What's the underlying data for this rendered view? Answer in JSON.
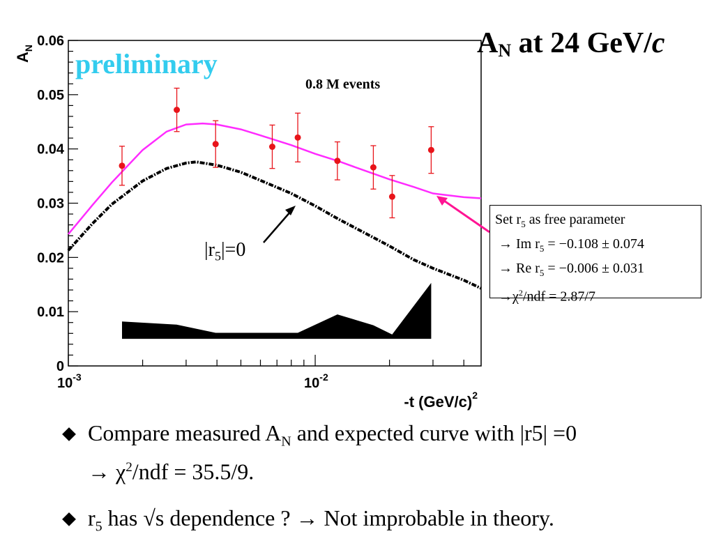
{
  "slide": {
    "title_main": "A",
    "title_sub": "N",
    "title_rest": " at 24 GeV/",
    "title_italic": "c",
    "preliminary": "preliminary",
    "events": "0.8 M events"
  },
  "annotations": {
    "r5_label_pre": "|r",
    "r5_label_sub": "5",
    "r5_label_post": "|=0"
  },
  "fit_box": {
    "line1_pre": "Set r",
    "line1_sub": "5",
    "line1_post": " as free parameter",
    "line2_pre": "→ Im r",
    "line2_sub": "5",
    "line2_post": " = −0.108 ± 0.074",
    "line3_pre": "→ Re r",
    "line3_sub": "5",
    "line3_post": " = −0.006 ± 0.031",
    "line4_pre": "→χ",
    "line4_sup": "2",
    "line4_post": "/ndf = 2.87/7"
  },
  "bullets": {
    "b1_pre": "Compare measured A",
    "b1_sub": "N",
    "b1_post": " and expected curve with |r5| =0",
    "b1_line2_pre": "→ χ",
    "b1_line2_sup": "2",
    "b1_line2_post": "/ndf = 35.5/9.",
    "b2_pre": "r",
    "b2_sub": "5",
    "b2_post": " has √s dependence ? → Not improbable in theory."
  },
  "colors": {
    "points": "#e8141a",
    "fit_curve": "#ff2bff",
    "arrow": "#ff1493",
    "band": "#000000",
    "preliminary": "#33ccee"
  },
  "chart_data": {
    "type": "scatter",
    "ylabel_main": "A",
    "ylabel_sub": "N",
    "xlabel": "-t (GeV/c)",
    "xlabel_sup": "2",
    "xscale": "log",
    "xlim": [
      0.001,
      0.047
    ],
    "ylim": [
      0,
      0.06
    ],
    "yticks": [
      "0",
      "0.01",
      "0.02",
      "0.03",
      "0.04",
      "0.05",
      "0.06"
    ],
    "xtick_labels": [
      {
        "base": "10",
        "exp": "-3",
        "value": 0.001
      },
      {
        "base": "10",
        "exp": "-2",
        "value": 0.01
      }
    ],
    "points": [
      {
        "x": 0.00165,
        "y": 0.0369,
        "err": 0.0036
      },
      {
        "x": 0.00275,
        "y": 0.0472,
        "err": 0.004
      },
      {
        "x": 0.00395,
        "y": 0.0409,
        "err": 0.0043
      },
      {
        "x": 0.0067,
        "y": 0.0404,
        "err": 0.004
      },
      {
        "x": 0.0085,
        "y": 0.0421,
        "err": 0.0045
      },
      {
        "x": 0.0123,
        "y": 0.0378,
        "err": 0.0035
      },
      {
        "x": 0.0172,
        "y": 0.0366,
        "err": 0.004
      },
      {
        "x": 0.0205,
        "y": 0.0312,
        "err": 0.0039
      },
      {
        "x": 0.0295,
        "y": 0.0398,
        "err": 0.0043
      }
    ],
    "fit_curve": {
      "x": [
        0.001,
        0.00125,
        0.0015,
        0.002,
        0.0025,
        0.003,
        0.0035,
        0.004,
        0.005,
        0.006,
        0.008,
        0.01,
        0.0125,
        0.015,
        0.02,
        0.025,
        0.03,
        0.04,
        0.047
      ],
      "y": [
        0.0243,
        0.0296,
        0.0338,
        0.0398,
        0.0432,
        0.0445,
        0.0447,
        0.0445,
        0.0436,
        0.0425,
        0.0407,
        0.0391,
        0.0377,
        0.0364,
        0.0344,
        0.033,
        0.0318,
        0.0311,
        0.0309
      ]
    },
    "r5_zero_curve": {
      "x": [
        0.001,
        0.00125,
        0.0015,
        0.002,
        0.0025,
        0.003,
        0.0033,
        0.004,
        0.005,
        0.006,
        0.008,
        0.01,
        0.0125,
        0.015,
        0.02,
        0.025,
        0.03,
        0.04,
        0.047
      ],
      "y": [
        0.0213,
        0.0262,
        0.0298,
        0.0341,
        0.0364,
        0.0374,
        0.0376,
        0.037,
        0.0357,
        0.0342,
        0.0318,
        0.0295,
        0.027,
        0.0251,
        0.0221,
        0.0196,
        0.018,
        0.0158,
        0.0143
      ]
    },
    "systematic_band": {
      "x": [
        0.00165,
        0.00275,
        0.00395,
        0.0067,
        0.0085,
        0.0123,
        0.0172,
        0.0205,
        0.0295
      ],
      "y": [
        0.0082,
        0.0076,
        0.0061,
        0.0061,
        0.0061,
        0.0095,
        0.0075,
        0.0058,
        0.0153
      ],
      "base": 0.005
    }
  }
}
